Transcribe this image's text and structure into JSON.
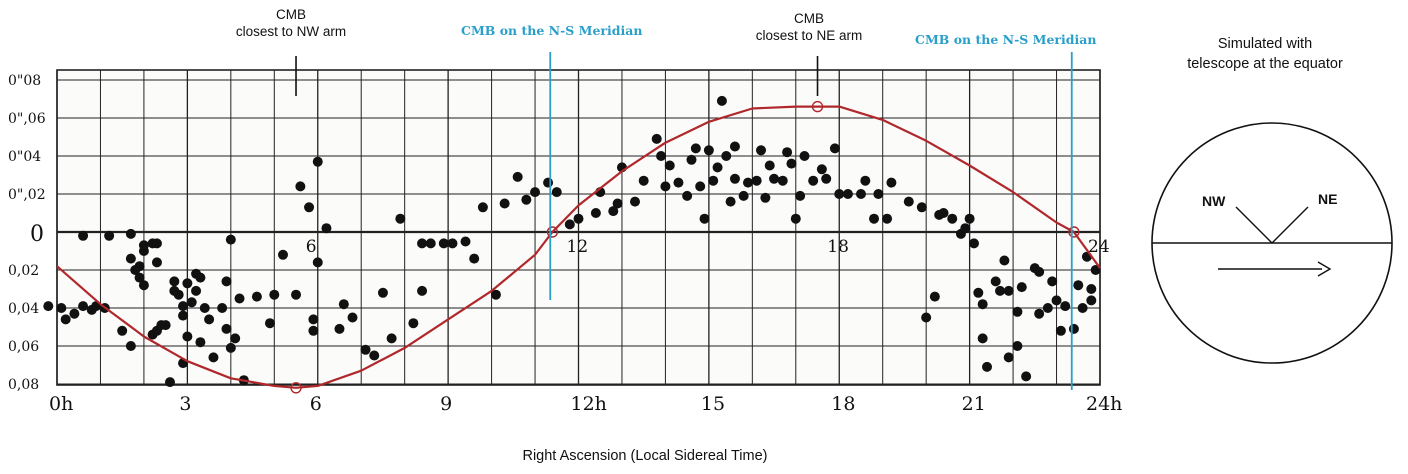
{
  "chart_data": {
    "type": "scatter",
    "xlabel": "Right Ascension (Local Sidereal Time)",
    "xlim": [
      0,
      24
    ],
    "ylim": [
      -0.08,
      0.08
    ],
    "x_ticks": [
      {
        "value": 0,
        "label": "0h"
      },
      {
        "value": 3,
        "label": "3"
      },
      {
        "value": 6,
        "label": "6"
      },
      {
        "value": 9,
        "label": "9"
      },
      {
        "value": 12,
        "label": "12h"
      },
      {
        "value": 15,
        "label": "15"
      },
      {
        "value": 18,
        "label": "18"
      },
      {
        "value": 21,
        "label": "21"
      },
      {
        "value": 24,
        "label": "24h"
      }
    ],
    "y_ticks": [
      {
        "value": 0.08,
        "label": "0\"08"
      },
      {
        "value": 0.06,
        "label": "0\",06"
      },
      {
        "value": 0.04,
        "label": "0\"04"
      },
      {
        "value": 0.02,
        "label": "0\",02"
      },
      {
        "value": 0,
        "label": "0"
      },
      {
        "value": -0.02,
        "label": "0,02"
      },
      {
        "value": -0.04,
        "label": "0,04"
      },
      {
        "value": -0.06,
        "label": "0,06"
      },
      {
        "value": -0.08,
        "label": "0,08"
      }
    ],
    "inner_labels": [
      {
        "x": 6,
        "label": "6"
      },
      {
        "x": 12,
        "label": "12"
      },
      {
        "x": 18,
        "label": "18"
      },
      {
        "x": 24,
        "label": "24"
      }
    ],
    "grid": true,
    "vertical_markers": [
      {
        "x": 11.35,
        "label": "CMB on the N-S Meridian"
      },
      {
        "x": 23.35,
        "label": "CMB on the N-S Meridian"
      }
    ],
    "annotations": [
      {
        "x": 5.5,
        "label_line1": "CMB",
        "label_line2": "closest to NW arm"
      },
      {
        "x": 17.5,
        "label_line1": "CMB",
        "label_line2": "closest to NE arm"
      }
    ],
    "points": [
      [
        -0.2,
        -0.039
      ],
      [
        0.1,
        -0.04
      ],
      [
        0.2,
        -0.046
      ],
      [
        0.4,
        -0.043
      ],
      [
        0.6,
        -0.039
      ],
      [
        0.8,
        -0.041
      ],
      [
        0.9,
        -0.039
      ],
      [
        1.1,
        -0.04
      ],
      [
        0.6,
        -0.002
      ],
      [
        1.2,
        -0.002
      ],
      [
        1.5,
        -0.052
      ],
      [
        1.7,
        -0.06
      ],
      [
        1.7,
        -0.001
      ],
      [
        1.7,
        -0.014
      ],
      [
        1.8,
        -0.02
      ],
      [
        1.9,
        -0.024
      ],
      [
        1.9,
        -0.018
      ],
      [
        2.0,
        -0.028
      ],
      [
        2.0,
        -0.01
      ],
      [
        2.0,
        -0.007
      ],
      [
        2.2,
        -0.006
      ],
      [
        2.3,
        -0.006
      ],
      [
        2.2,
        -0.054
      ],
      [
        2.3,
        -0.052
      ],
      [
        2.3,
        -0.016
      ],
      [
        2.4,
        -0.049
      ],
      [
        2.5,
        -0.049
      ],
      [
        2.6,
        -0.079
      ],
      [
        2.7,
        -0.026
      ],
      [
        2.7,
        -0.031
      ],
      [
        2.8,
        -0.033
      ],
      [
        2.9,
        -0.039
      ],
      [
        2.9,
        -0.044
      ],
      [
        2.9,
        -0.069
      ],
      [
        3.0,
        -0.055
      ],
      [
        3.0,
        -0.027
      ],
      [
        3.1,
        -0.037
      ],
      [
        3.2,
        -0.031
      ],
      [
        3.2,
        -0.022
      ],
      [
        3.3,
        -0.024
      ],
      [
        3.4,
        -0.04
      ],
      [
        3.5,
        -0.046
      ],
      [
        3.3,
        -0.058
      ],
      [
        3.6,
        -0.066
      ],
      [
        3.8,
        -0.04
      ],
      [
        3.9,
        -0.026
      ],
      [
        3.9,
        -0.051
      ],
      [
        4.0,
        -0.004
      ],
      [
        4.1,
        -0.056
      ],
      [
        4.0,
        -0.061
      ],
      [
        4.3,
        -0.078
      ],
      [
        4.2,
        -0.035
      ],
      [
        4.6,
        -0.034
      ],
      [
        4.9,
        -0.048
      ],
      [
        5.0,
        -0.033
      ],
      [
        5.5,
        -0.033
      ],
      [
        5.2,
        -0.012
      ],
      [
        5.6,
        0.024
      ],
      [
        5.8,
        0.013
      ],
      [
        5.9,
        -0.046
      ],
      [
        5.9,
        -0.052
      ],
      [
        6.0,
        0.037
      ],
      [
        6.0,
        -0.016
      ],
      [
        6.2,
        0.002
      ],
      [
        6.5,
        -0.051
      ],
      [
        6.6,
        -0.038
      ],
      [
        6.8,
        -0.045
      ],
      [
        7.1,
        -0.062
      ],
      [
        7.3,
        -0.065
      ],
      [
        7.5,
        -0.032
      ],
      [
        7.7,
        -0.056
      ],
      [
        7.9,
        0.007
      ],
      [
        8.2,
        -0.048
      ],
      [
        8.4,
        -0.006
      ],
      [
        8.4,
        -0.031
      ],
      [
        8.6,
        -0.006
      ],
      [
        8.9,
        -0.006
      ],
      [
        9.1,
        -0.006
      ],
      [
        9.4,
        -0.005
      ],
      [
        9.6,
        -0.014
      ],
      [
        9.8,
        0.013
      ],
      [
        10.1,
        -0.033
      ],
      [
        10.3,
        0.015
      ],
      [
        10.6,
        0.029
      ],
      [
        10.8,
        0.017
      ],
      [
        11.0,
        0.021
      ],
      [
        11.3,
        0.026
      ],
      [
        11.5,
        0.021
      ],
      [
        11.8,
        0.004
      ],
      [
        12.0,
        0.007
      ],
      [
        12.4,
        0.01
      ],
      [
        12.8,
        0.011
      ],
      [
        12.5,
        0.021
      ],
      [
        12.9,
        0.015
      ],
      [
        13.0,
        0.034
      ],
      [
        13.3,
        0.016
      ],
      [
        13.5,
        0.027
      ],
      [
        13.8,
        0.049
      ],
      [
        13.9,
        0.04
      ],
      [
        14.0,
        0.024
      ],
      [
        14.1,
        0.035
      ],
      [
        14.3,
        0.026
      ],
      [
        14.5,
        0.019
      ],
      [
        14.6,
        0.038
      ],
      [
        14.7,
        0.044
      ],
      [
        14.8,
        0.024
      ],
      [
        14.9,
        0.007
      ],
      [
        15.0,
        0.043
      ],
      [
        15.1,
        0.027
      ],
      [
        15.2,
        0.034
      ],
      [
        15.3,
        0.069
      ],
      [
        15.4,
        0.04
      ],
      [
        15.5,
        0.016
      ],
      [
        15.6,
        0.028
      ],
      [
        15.6,
        0.045
      ],
      [
        15.8,
        0.019
      ],
      [
        15.9,
        0.026
      ],
      [
        16.1,
        0.027
      ],
      [
        16.2,
        0.043
      ],
      [
        16.3,
        0.018
      ],
      [
        16.4,
        0.035
      ],
      [
        16.5,
        0.028
      ],
      [
        16.7,
        0.027
      ],
      [
        16.8,
        0.042
      ],
      [
        16.9,
        0.036
      ],
      [
        17.0,
        0.007
      ],
      [
        17.1,
        0.019
      ],
      [
        17.2,
        0.04
      ],
      [
        17.4,
        0.027
      ],
      [
        17.6,
        0.033
      ],
      [
        17.7,
        0.028
      ],
      [
        17.9,
        0.044
      ],
      [
        18.0,
        0.02
      ],
      [
        18.2,
        0.02
      ],
      [
        18.5,
        0.02
      ],
      [
        18.6,
        0.027
      ],
      [
        18.8,
        0.007
      ],
      [
        18.9,
        0.02
      ],
      [
        19.1,
        0.007
      ],
      [
        19.2,
        0.026
      ],
      [
        19.6,
        0.016
      ],
      [
        19.9,
        0.013
      ],
      [
        20.0,
        -0.045
      ],
      [
        20.2,
        -0.034
      ],
      [
        20.3,
        0.009
      ],
      [
        20.4,
        0.01
      ],
      [
        20.6,
        0.007
      ],
      [
        20.8,
        -0.001
      ],
      [
        20.9,
        0.002
      ],
      [
        21.0,
        0.007
      ],
      [
        21.1,
        -0.006
      ],
      [
        21.2,
        -0.032
      ],
      [
        21.3,
        -0.038
      ],
      [
        21.3,
        -0.056
      ],
      [
        21.4,
        -0.071
      ],
      [
        21.6,
        -0.026
      ],
      [
        21.7,
        -0.031
      ],
      [
        21.8,
        -0.015
      ],
      [
        21.9,
        -0.066
      ],
      [
        21.9,
        -0.031
      ],
      [
        22.1,
        -0.042
      ],
      [
        22.1,
        -0.06
      ],
      [
        22.2,
        -0.029
      ],
      [
        22.3,
        -0.076
      ],
      [
        22.5,
        -0.019
      ],
      [
        22.6,
        -0.021
      ],
      [
        22.6,
        -0.043
      ],
      [
        22.8,
        -0.04
      ],
      [
        22.9,
        -0.026
      ],
      [
        23.0,
        -0.036
      ],
      [
        23.1,
        -0.052
      ],
      [
        23.2,
        -0.039
      ],
      [
        23.4,
        -0.051
      ],
      [
        23.5,
        -0.028
      ],
      [
        23.6,
        -0.04
      ],
      [
        23.7,
        -0.013
      ],
      [
        23.8,
        -0.036
      ],
      [
        23.9,
        -0.02
      ],
      [
        23.8,
        -0.03
      ]
    ],
    "curve": {
      "name": "Simulated",
      "x": [
        0,
        1,
        2,
        3,
        4,
        5,
        5.5,
        6,
        7,
        8,
        9,
        10,
        11,
        11.4,
        12,
        13,
        14,
        15,
        16,
        17,
        17.5,
        18,
        19,
        20,
        21,
        22,
        23,
        23.4,
        24
      ],
      "y": [
        -0.018,
        -0.038,
        -0.055,
        -0.068,
        -0.077,
        -0.081,
        -0.082,
        -0.081,
        -0.073,
        -0.061,
        -0.046,
        -0.031,
        -0.012,
        0,
        0.014,
        0.032,
        0.047,
        0.058,
        0.065,
        0.066,
        0.066,
        0.066,
        0.059,
        0.048,
        0.035,
        0.021,
        0.005,
        0,
        -0.019
      ]
    },
    "curve_markers": [
      {
        "x": 5.5,
        "y": -0.082
      },
      {
        "x": 11.4,
        "y": 0.0
      },
      {
        "x": 17.5,
        "y": 0.066
      },
      {
        "x": 23.4,
        "y": 0.0
      }
    ],
    "colors": {
      "curve": "#b0282b",
      "meridian": "#2a9fc9",
      "points": "#111111",
      "grid": "#222222"
    }
  },
  "annotations": {
    "nw_line1": "CMB",
    "nw_line2": "closest to NW arm",
    "ne_line1": "CMB",
    "ne_line2": "closest to NE arm",
    "meridian_left": "CMB on the N-S Meridian",
    "meridian_right": "CMB on the N-S Meridian"
  },
  "x_axis_label": "Right Ascension (Local Sidereal Time)",
  "simulation": {
    "title_line1": "Simulated with",
    "title_line2": "telescope at the equator",
    "nw_label": "NW",
    "ne_label": "NE"
  }
}
